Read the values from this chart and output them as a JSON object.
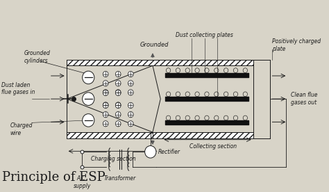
{
  "bg_color": "#d8d4c8",
  "title": "Principle of ESP",
  "title_fontsize": 13,
  "labels": {
    "grounded_cylinders": "Grounded\ncylinders",
    "grounded": "Grounded",
    "dust_collecting": "Dust collecting plates",
    "positively_charged": "Positively charged\nplate",
    "dust_laden": "Dust laden\nflue gases in",
    "clean_flue": "Clean flue\ngases out",
    "charged_wire": "Charged\nwire",
    "charging_section": "Charging section",
    "collecting_section": "Collecting section",
    "ac_supply": "A.C.\nsupply",
    "transformer": "Transformer",
    "rectifier": "Rectifier"
  },
  "line_color": "#1a1a1a"
}
